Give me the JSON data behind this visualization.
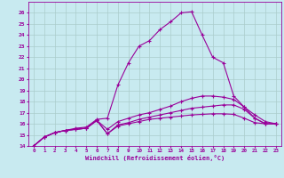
{
  "xlabel": "Windchill (Refroidissement éolien,°C)",
  "background_color": "#c8eaf0",
  "line_color": "#990099",
  "grid_color": "#aacccc",
  "xlim": [
    -0.5,
    23.5
  ],
  "ylim": [
    14,
    27
  ],
  "xticks": [
    0,
    1,
    2,
    3,
    4,
    5,
    6,
    7,
    8,
    9,
    10,
    11,
    12,
    13,
    14,
    15,
    16,
    17,
    18,
    19,
    20,
    21,
    22,
    23
  ],
  "yticks": [
    14,
    15,
    16,
    17,
    18,
    19,
    20,
    21,
    22,
    23,
    24,
    25,
    26
  ],
  "line_main_x": [
    0,
    1,
    2,
    3,
    4,
    5,
    6,
    7,
    8,
    9,
    10,
    11,
    12,
    13,
    14,
    15,
    16,
    17,
    18,
    19,
    20,
    21,
    22,
    23
  ],
  "line_main_y": [
    14.0,
    14.8,
    15.2,
    15.4,
    15.6,
    15.7,
    16.4,
    16.5,
    19.5,
    21.5,
    23.0,
    23.5,
    24.5,
    25.2,
    26.0,
    26.1,
    24.0,
    22.0,
    21.5,
    18.5,
    17.5,
    16.5,
    16.0,
    16.0
  ],
  "line2_x": [
    0,
    1,
    2,
    3,
    4,
    5,
    6,
    7,
    8,
    9,
    10,
    11,
    12,
    13,
    14,
    15,
    16,
    17,
    18,
    19,
    20,
    21,
    22,
    23
  ],
  "line2_y": [
    14.0,
    14.8,
    15.2,
    15.4,
    15.5,
    15.6,
    16.3,
    15.5,
    16.2,
    16.5,
    16.8,
    17.0,
    17.3,
    17.6,
    18.0,
    18.3,
    18.5,
    18.5,
    18.4,
    18.2,
    17.5,
    16.8,
    16.2,
    16.0
  ],
  "line3_x": [
    0,
    1,
    2,
    3,
    4,
    5,
    6,
    7,
    8,
    9,
    10,
    11,
    12,
    13,
    14,
    15,
    16,
    17,
    18,
    19,
    20,
    21,
    22,
    23
  ],
  "line3_y": [
    14.0,
    14.8,
    15.2,
    15.4,
    15.5,
    15.6,
    16.3,
    15.1,
    15.9,
    16.1,
    16.4,
    16.6,
    16.8,
    17.0,
    17.2,
    17.4,
    17.5,
    17.6,
    17.7,
    17.7,
    17.3,
    16.5,
    16.0,
    16.0
  ],
  "line4_x": [
    0,
    1,
    2,
    3,
    4,
    5,
    6,
    7,
    8,
    9,
    10,
    11,
    12,
    13,
    14,
    15,
    16,
    17,
    18,
    19,
    20,
    21,
    22,
    23
  ],
  "line4_y": [
    14.0,
    14.8,
    15.2,
    15.4,
    15.5,
    15.6,
    16.3,
    15.1,
    15.8,
    16.0,
    16.2,
    16.4,
    16.5,
    16.6,
    16.7,
    16.8,
    16.85,
    16.9,
    16.9,
    16.85,
    16.5,
    16.1,
    16.0,
    16.0
  ]
}
